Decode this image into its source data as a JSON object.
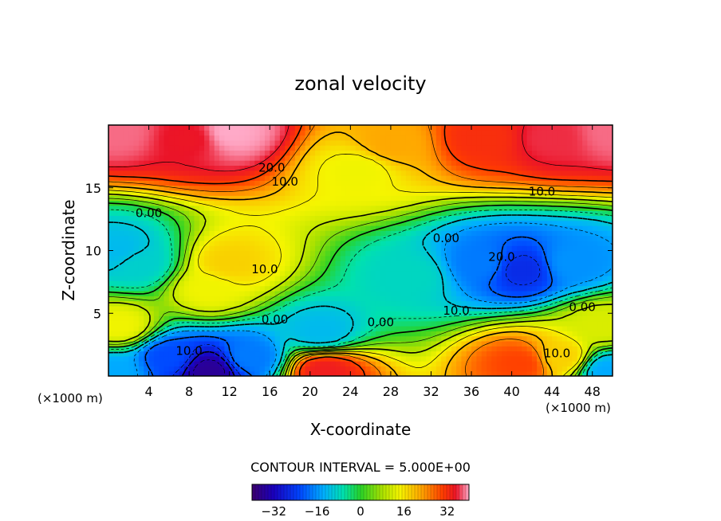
{
  "chart_data": {
    "type": "heatmap",
    "title": "zonal velocity",
    "xlabel": "X-coordinate",
    "ylabel": "Z-coordinate",
    "x_scale_note": "(×1000 m)",
    "x_scale_note_right": "(×1000 m)",
    "xlim": [
      0,
      50
    ],
    "ylim": [
      0,
      20
    ],
    "x_ticks": [
      4,
      8,
      12,
      16,
      20,
      24,
      28,
      32,
      36,
      40,
      44,
      48
    ],
    "x_tick_labels": [
      "4",
      "8",
      "12",
      "16",
      "20",
      "24",
      "28",
      "32",
      "36",
      "40",
      "44",
      "48"
    ],
    "y_ticks": [
      5,
      10,
      15
    ],
    "y_tick_labels": [
      "5",
      "10",
      "15"
    ],
    "contour_interval_text": "CONTOUR INTERVAL = 5.000E+00",
    "colorbar": {
      "min": -40,
      "max": 40,
      "ticks": [
        -32,
        -16,
        0,
        16,
        32
      ],
      "tick_labels": [
        "−32",
        "−16",
        "0",
        "16",
        "32"
      ]
    },
    "field_features": [
      {
        "x": 1,
        "z": 19.5,
        "u": 38
      },
      {
        "x": 8,
        "z": 19,
        "u": 35
      },
      {
        "x": 12,
        "z": 19.5,
        "u": 40
      },
      {
        "x": 28,
        "z": 18.5,
        "u": 22
      },
      {
        "x": 37,
        "z": 19,
        "u": 32
      },
      {
        "x": 44,
        "z": 19,
        "u": 36
      },
      {
        "x": 50,
        "z": 19.5,
        "u": 38
      },
      {
        "x": 25,
        "z": 16.5,
        "u": 14
      },
      {
        "x": 12,
        "z": 9,
        "u": 18
      },
      {
        "x": 10,
        "z": 7,
        "u": 14
      },
      {
        "x": 1,
        "z": 10,
        "u": -12
      },
      {
        "x": 3,
        "z": 9,
        "u": -9
      },
      {
        "x": 41,
        "z": 8.5,
        "u": -26
      },
      {
        "x": 37,
        "z": 9,
        "u": -18
      },
      {
        "x": 46,
        "z": 9,
        "u": -16
      },
      {
        "x": 30,
        "z": 8,
        "u": -8
      },
      {
        "x": 10,
        "z": 0.5,
        "u": -36
      },
      {
        "x": 6,
        "z": 1.5,
        "u": -22
      },
      {
        "x": 14,
        "z": 1.5,
        "u": -18
      },
      {
        "x": 21,
        "z": 3.5,
        "u": -12
      },
      {
        "x": 21.5,
        "z": 0.5,
        "u": 34
      },
      {
        "x": 41,
        "z": 1.0,
        "u": 30
      },
      {
        "x": 45,
        "z": 1.5,
        "u": 18
      },
      {
        "x": 1,
        "z": 4,
        "u": 14
      },
      {
        "x": 49,
        "z": 4,
        "u": 12
      },
      {
        "x": 0.5,
        "z": 0.5,
        "u": -14
      },
      {
        "x": 49.5,
        "z": 0.5,
        "u": -14
      }
    ],
    "contour_labels": [
      {
        "text": "20.0",
        "x": 16.2,
        "z": 16.6
      },
      {
        "text": "10.0",
        "x": 17.5,
        "z": 15.5
      },
      {
        "text": "0.00",
        "x": 4.0,
        "z": 13.0
      },
      {
        "text": "10.0",
        "x": 43.0,
        "z": 14.7
      },
      {
        "text": "0.00",
        "x": 33.5,
        "z": 11.0
      },
      {
        "text": "20.0",
        "x": 39.0,
        "z": 9.5
      },
      {
        "text": "10.0",
        "x": 15.5,
        "z": 8.5
      },
      {
        "text": "10.0",
        "x": 34.5,
        "z": 5.2
      },
      {
        "text": "0.00",
        "x": 16.5,
        "z": 4.5
      },
      {
        "text": "0.00",
        "x": 27.0,
        "z": 4.3
      },
      {
        "text": "0.00",
        "x": 47.0,
        "z": 5.5
      },
      {
        "text": "10.0",
        "x": 8.0,
        "z": 2.0
      },
      {
        "text": "10.0",
        "x": 44.5,
        "z": 1.8
      }
    ]
  }
}
